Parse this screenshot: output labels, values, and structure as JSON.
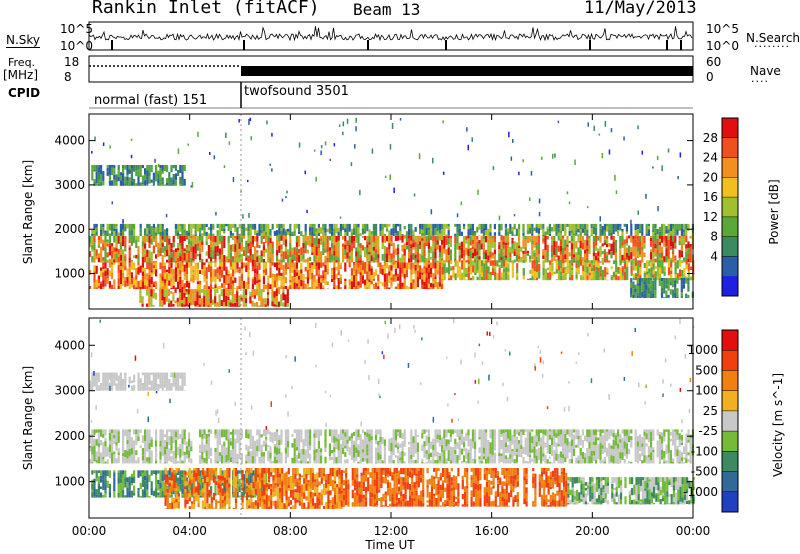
{
  "header": {
    "station": "Rankin Inlet (fitACF)",
    "beam": "Beam 13",
    "date": "11/May/2013"
  },
  "left_labels": {
    "nsky": "N.Sky",
    "freq": "Freq.",
    "freq_unit": "[MHz]",
    "cpid": "CPID"
  },
  "right_labels": {
    "nsearch": "N.Search",
    "nave": "Nave"
  },
  "noise_axis": {
    "left_top": "10^5",
    "left_bottom": "10^0",
    "right_top": "10^5",
    "right_bottom": "10^0"
  },
  "freq_axis": {
    "left_top": "18",
    "left_bottom": "8",
    "right_top": "60",
    "right_bottom": "0"
  },
  "cpid_modes": [
    "normal (fast) 151",
    "twofsound 3501"
  ],
  "chart_data": [
    {
      "type": "heatmap",
      "panel": "power",
      "xlabel": "",
      "ylabel": "Slant Range [km]",
      "yticks": [
        "1000",
        "2000",
        "3000",
        "4000"
      ],
      "ylim": [
        200,
        4600
      ],
      "xlim": [
        0,
        24
      ],
      "colorbar": {
        "label": "Power [dB]",
        "ticks": [
          "28",
          "24",
          "20",
          "16",
          "12",
          "8",
          "4"
        ],
        "colors": [
          "#2020e0",
          "#2a5fa6",
          "#3c8a60",
          "#5aa83a",
          "#a0c030",
          "#f0c020",
          "#f09020",
          "#f05020",
          "#e01010"
        ]
      },
      "bands": [
        {
          "t0": 0.0,
          "t1": 3.8,
          "r0": 2980,
          "r1": 3450,
          "levels": [
            1,
            2,
            3
          ]
        },
        {
          "t0": 0.0,
          "t1": 24.0,
          "r0": 1850,
          "r1": 2120,
          "levels": [
            1,
            2,
            3,
            4
          ]
        },
        {
          "t0": 0.0,
          "t1": 24.0,
          "r0": 1250,
          "r1": 1850,
          "levels": [
            3,
            4,
            6,
            7,
            8
          ]
        },
        {
          "t0": 0.0,
          "t1": 14.0,
          "r0": 650,
          "r1": 1250,
          "levels": [
            5,
            6,
            7,
            8
          ]
        },
        {
          "t0": 14.0,
          "t1": 24.0,
          "r0": 850,
          "r1": 1300,
          "levels": [
            3,
            4,
            5,
            7
          ]
        },
        {
          "t0": 2.0,
          "t1": 8.0,
          "r0": 250,
          "r1": 650,
          "levels": [
            4,
            6,
            8
          ]
        },
        {
          "t0": 21.5,
          "t1": 24.0,
          "r0": 450,
          "r1": 900,
          "levels": [
            1,
            2,
            3
          ]
        }
      ]
    },
    {
      "type": "heatmap",
      "panel": "velocity",
      "xlabel": "Time UT",
      "ylabel": "Slant Range [km]",
      "xticks": [
        "00:00",
        "04:00",
        "08:00",
        "12:00",
        "16:00",
        "20:00",
        "00:00"
      ],
      "yticks": [
        "1000",
        "2000",
        "3000",
        "4000"
      ],
      "ylim": [
        200,
        4600
      ],
      "xlim": [
        0,
        24
      ],
      "colorbar": {
        "label": "Velocity [m s^-1]",
        "ticks": [
          "1000",
          "500",
          "100",
          "25",
          "-25",
          "-100",
          "-500",
          "-1000"
        ],
        "colors": [
          "#2040c0",
          "#2f6a98",
          "#3d8a60",
          "#74bb3a",
          "#c8c8c8",
          "#f0b020",
          "#f08010",
          "#f04010",
          "#e01010"
        ]
      },
      "bands": [
        {
          "t0": 0.0,
          "t1": 3.8,
          "r0": 3000,
          "r1": 3400,
          "levels": [
            4
          ]
        },
        {
          "t0": 0.0,
          "t1": 24.0,
          "r0": 1400,
          "r1": 2150,
          "levels": [
            4,
            4,
            3
          ]
        },
        {
          "t0": 0.0,
          "t1": 7.0,
          "r0": 650,
          "r1": 1250,
          "levels": [
            2,
            3,
            1
          ]
        },
        {
          "t0": 3.0,
          "t1": 10.0,
          "r0": 400,
          "r1": 1300,
          "levels": [
            6,
            7,
            5
          ]
        },
        {
          "t0": 10.0,
          "t1": 19.0,
          "r0": 450,
          "r1": 1300,
          "levels": [
            6,
            7
          ]
        },
        {
          "t0": 19.0,
          "t1": 24.0,
          "r0": 500,
          "r1": 1100,
          "levels": [
            2,
            3,
            4
          ]
        }
      ]
    }
  ]
}
